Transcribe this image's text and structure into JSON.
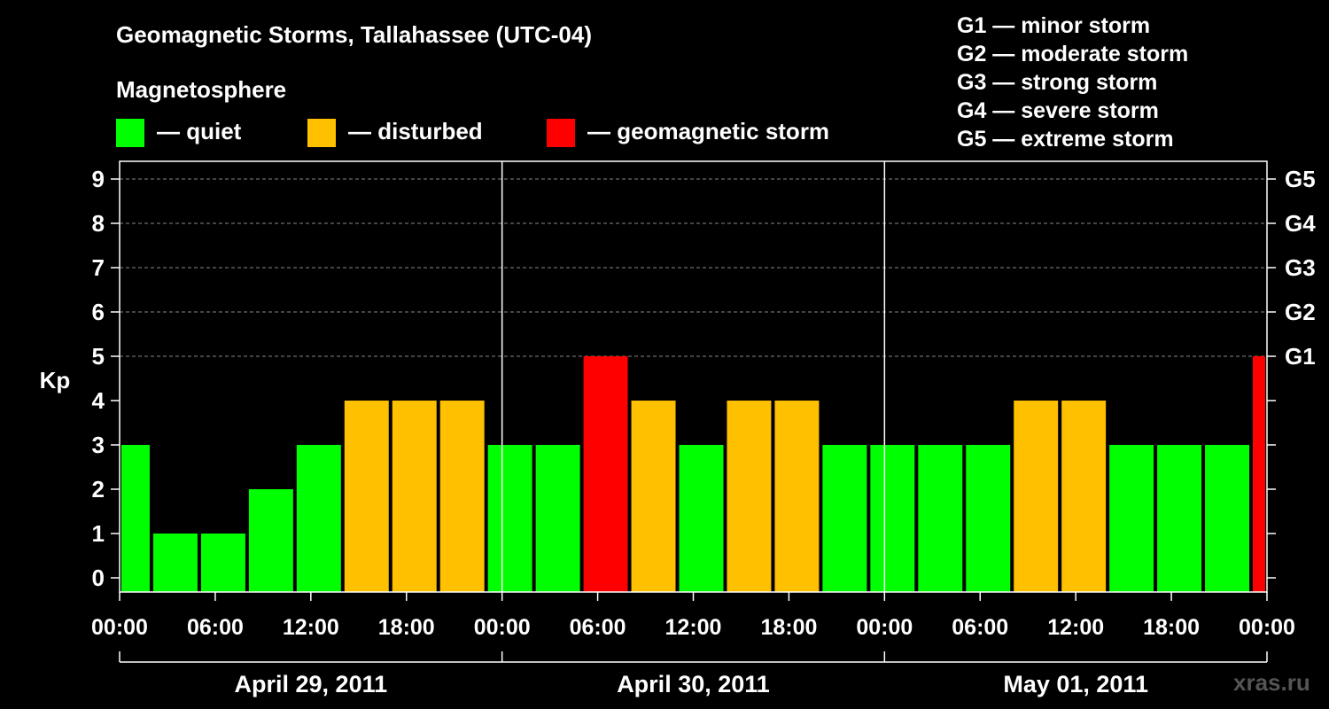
{
  "title": "Geomagnetic Storms, Tallahassee (UTC-04)",
  "subtitle": "Magnetosphere",
  "legend": [
    {
      "label": "— quiet",
      "color": "#00ff00"
    },
    {
      "label": "— disturbed",
      "color": "#ffc000"
    },
    {
      "label": "— geomagnetic storm",
      "color": "#ff0000"
    }
  ],
  "g_scale": [
    "G1 — minor storm",
    "G2 — moderate storm",
    "G3 — strong storm",
    "G4 — severe storm",
    "G5 — extreme storm"
  ],
  "watermark": "xras.ru",
  "chart_data": {
    "type": "bar",
    "ylabel": "Kp",
    "ylim": [
      0,
      9
    ],
    "yticks": [
      0,
      1,
      2,
      3,
      4,
      5,
      6,
      7,
      8,
      9
    ],
    "right_ticks": [
      {
        "kp": 5,
        "label": "G1"
      },
      {
        "kp": 6,
        "label": "G2"
      },
      {
        "kp": 7,
        "label": "G3"
      },
      {
        "kp": 8,
        "label": "G4"
      },
      {
        "kp": 9,
        "label": "G5"
      }
    ],
    "grid": true,
    "xlim_hours": [
      0,
      72
    ],
    "xtick_labels": [
      "00:00",
      "06:00",
      "12:00",
      "18:00",
      "00:00",
      "06:00",
      "12:00",
      "18:00",
      "00:00",
      "06:00",
      "12:00",
      "18:00",
      "00:00"
    ],
    "xtick_hours": [
      0,
      6,
      12,
      18,
      24,
      30,
      36,
      42,
      48,
      54,
      60,
      66,
      72
    ],
    "days": [
      {
        "label": "April 29, 2011",
        "start": 0,
        "end": 24
      },
      {
        "label": "April 30, 2011",
        "start": 24,
        "end": 48
      },
      {
        "label": "May 01, 2011",
        "start": 48,
        "end": 72
      }
    ],
    "bars": [
      {
        "start": 0,
        "end": 2,
        "kp": 3,
        "status": "quiet"
      },
      {
        "start": 2,
        "end": 5,
        "kp": 1,
        "status": "quiet"
      },
      {
        "start": 5,
        "end": 8,
        "kp": 1,
        "status": "quiet"
      },
      {
        "start": 8,
        "end": 11,
        "kp": 2,
        "status": "quiet"
      },
      {
        "start": 11,
        "end": 14,
        "kp": 3,
        "status": "quiet"
      },
      {
        "start": 14,
        "end": 17,
        "kp": 4,
        "status": "disturbed"
      },
      {
        "start": 17,
        "end": 20,
        "kp": 4,
        "status": "disturbed"
      },
      {
        "start": 20,
        "end": 23,
        "kp": 4,
        "status": "disturbed"
      },
      {
        "start": 23,
        "end": 26,
        "kp": 3,
        "status": "quiet"
      },
      {
        "start": 26,
        "end": 29,
        "kp": 3,
        "status": "quiet"
      },
      {
        "start": 29,
        "end": 32,
        "kp": 5,
        "status": "storm"
      },
      {
        "start": 32,
        "end": 35,
        "kp": 4,
        "status": "disturbed"
      },
      {
        "start": 35,
        "end": 38,
        "kp": 3,
        "status": "quiet"
      },
      {
        "start": 38,
        "end": 41,
        "kp": 4,
        "status": "disturbed"
      },
      {
        "start": 41,
        "end": 44,
        "kp": 4,
        "status": "disturbed"
      },
      {
        "start": 44,
        "end": 47,
        "kp": 3,
        "status": "quiet"
      },
      {
        "start": 47,
        "end": 50,
        "kp": 3,
        "status": "quiet"
      },
      {
        "start": 50,
        "end": 53,
        "kp": 3,
        "status": "quiet"
      },
      {
        "start": 53,
        "end": 56,
        "kp": 3,
        "status": "quiet"
      },
      {
        "start": 56,
        "end": 59,
        "kp": 4,
        "status": "disturbed"
      },
      {
        "start": 59,
        "end": 62,
        "kp": 4,
        "status": "disturbed"
      },
      {
        "start": 62,
        "end": 65,
        "kp": 3,
        "status": "quiet"
      },
      {
        "start": 65,
        "end": 68,
        "kp": 3,
        "status": "quiet"
      },
      {
        "start": 68,
        "end": 71,
        "kp": 3,
        "status": "quiet"
      },
      {
        "start": 71,
        "end": 72,
        "kp": 5,
        "status": "storm"
      }
    ],
    "colors": {
      "quiet": "#00ff00",
      "disturbed": "#ffc000",
      "storm": "#ff0000"
    }
  }
}
